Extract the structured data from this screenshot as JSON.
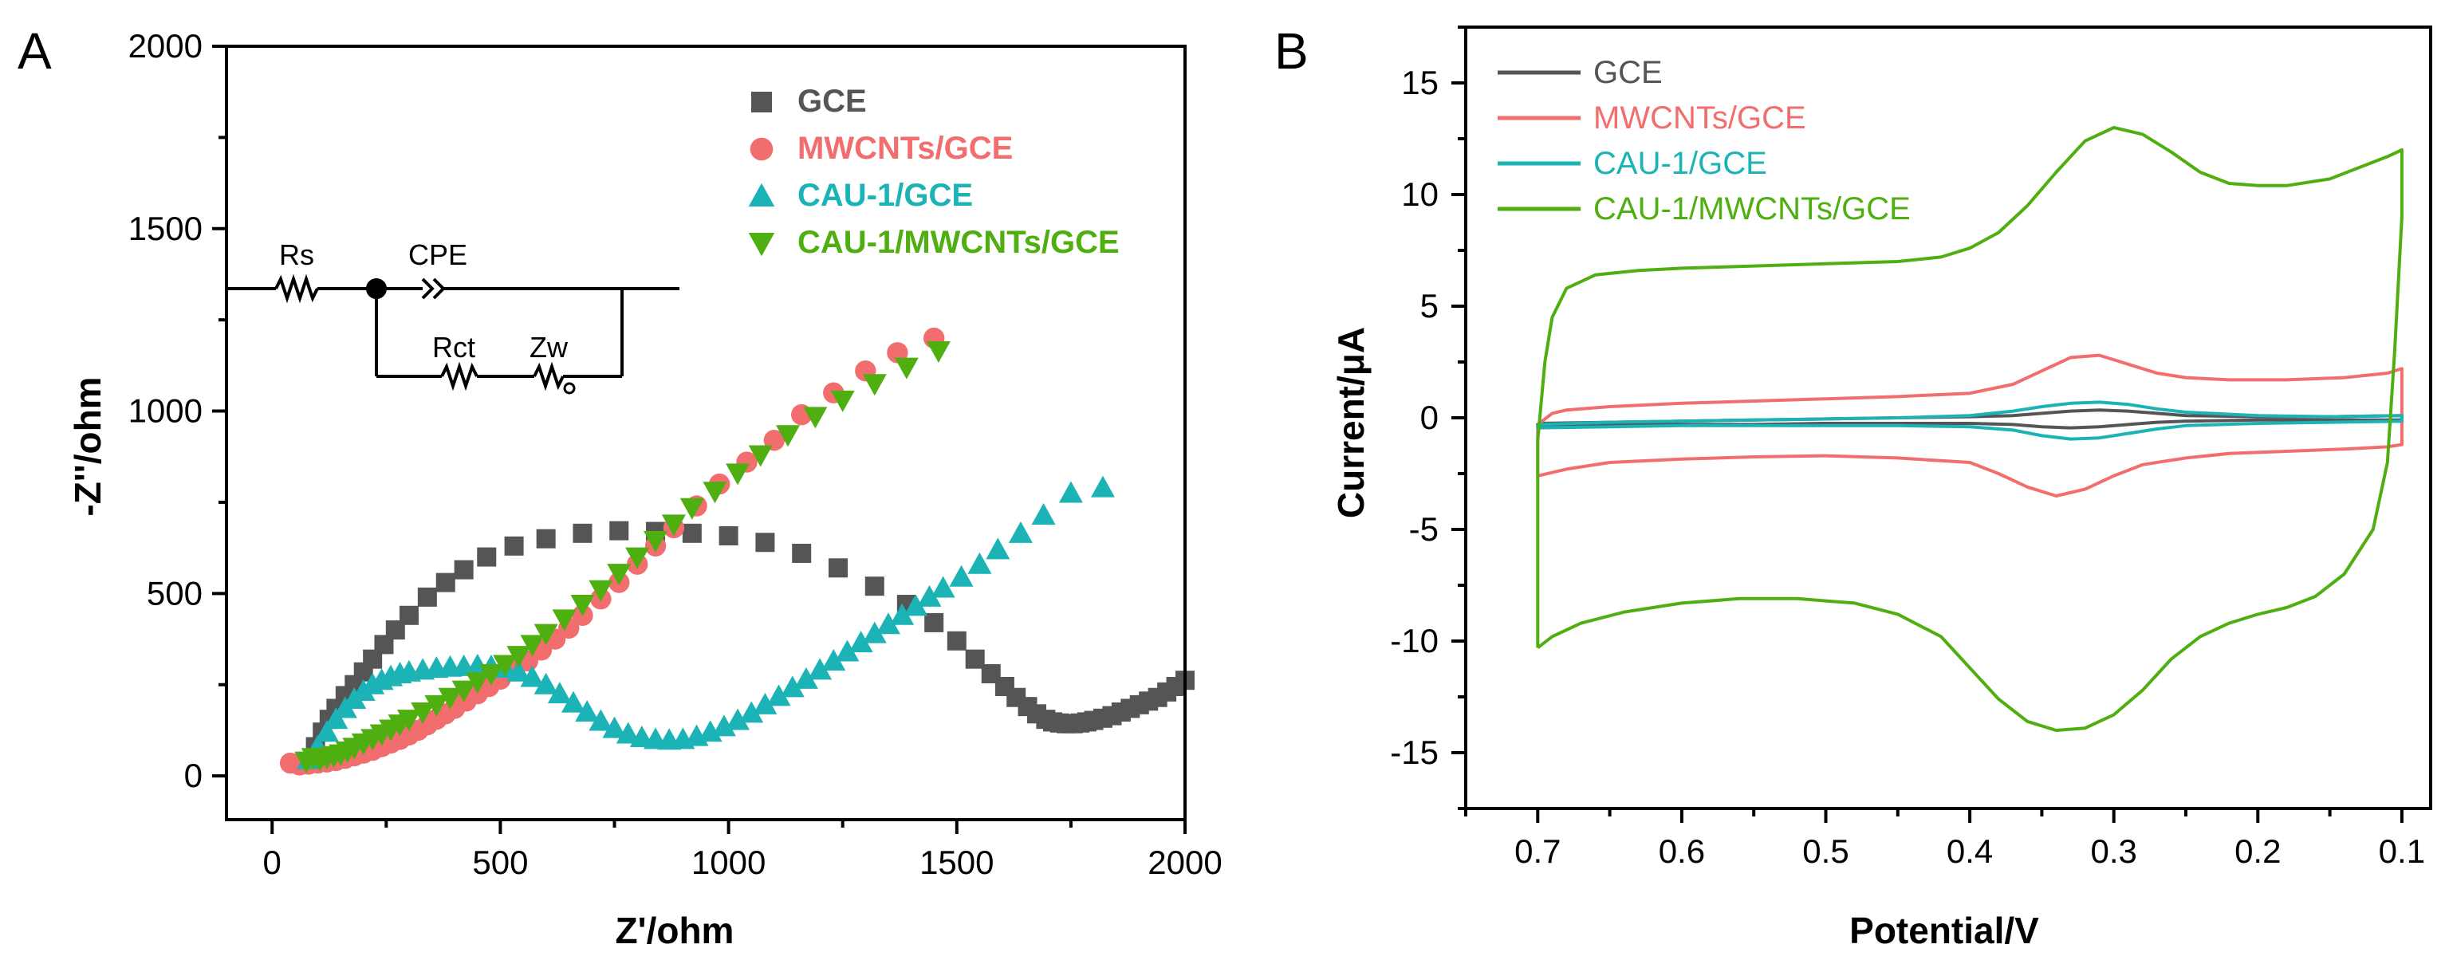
{
  "colors": {
    "gce": "#555555",
    "mwcnts": "#f26d6d",
    "cau1": "#1bb3b5",
    "cau1_mwcnts": "#4fae10"
  },
  "chart_data": [
    {
      "panel": "A",
      "type": "scatter",
      "xlabel": "Z'/ohm",
      "ylabel": "-Z''/ohm",
      "xlim": [
        -100,
        2000
      ],
      "ylim": [
        -120,
        2000
      ],
      "xticks": [
        "0",
        "500",
        "1000",
        "1500",
        "2000"
      ],
      "yticks": [
        "0",
        "500",
        "1000",
        "1500",
        "2000"
      ],
      "legend_position": "top-right",
      "inset": {
        "description_labels": [
          "Rs",
          "CPE",
          "Rct",
          "Zw"
        ]
      },
      "series": [
        {
          "name": "GCE",
          "marker": "square",
          "color_key": "gce",
          "x": [
            75,
            95,
            110,
            125,
            140,
            160,
            180,
            200,
            220,
            245,
            270,
            300,
            340,
            380,
            420,
            470,
            530,
            600,
            680,
            760,
            840,
            920,
            1000,
            1080,
            1160,
            1240,
            1320,
            1390,
            1450,
            1500,
            1540,
            1575,
            1605,
            1630,
            1655,
            1675,
            1695,
            1710,
            1725,
            1740,
            1755,
            1770,
            1785,
            1800,
            1820,
            1840,
            1860,
            1880,
            1900,
            1920,
            1940,
            1960,
            1980,
            2000
          ],
          "y": [
            40,
            80,
            120,
            155,
            185,
            220,
            250,
            285,
            320,
            360,
            400,
            440,
            490,
            530,
            565,
            600,
            630,
            650,
            665,
            672,
            670,
            665,
            658,
            640,
            610,
            570,
            520,
            470,
            420,
            370,
            320,
            280,
            245,
            215,
            190,
            170,
            155,
            148,
            145,
            143,
            143,
            145,
            148,
            152,
            158,
            165,
            175,
            185,
            195,
            205,
            215,
            230,
            245,
            262
          ]
        },
        {
          "name": "MWCNTs/GCE",
          "marker": "circle",
          "color_key": "mwcnts",
          "x": [
            40,
            60,
            80,
            100,
            120,
            140,
            160,
            180,
            200,
            220,
            240,
            260,
            280,
            300,
            320,
            340,
            360,
            380,
            400,
            425,
            450,
            475,
            500,
            530,
            560,
            590,
            620,
            650,
            680,
            720,
            760,
            800,
            840,
            880,
            930,
            980,
            1040,
            1100,
            1160,
            1230,
            1300,
            1370,
            1450
          ],
          "y": [
            35,
            30,
            32,
            35,
            38,
            42,
            48,
            55,
            62,
            70,
            80,
            90,
            100,
            112,
            125,
            140,
            155,
            170,
            185,
            205,
            225,
            245,
            265,
            290,
            315,
            345,
            375,
            405,
            440,
            485,
            530,
            580,
            630,
            680,
            740,
            800,
            860,
            920,
            990,
            1050,
            1110,
            1160,
            1200
          ]
        },
        {
          "name": "CAU-1/GCE",
          "marker": "triangle-up",
          "color_key": "cau1",
          "x": [
            80,
            100,
            120,
            140,
            160,
            180,
            200,
            220,
            240,
            260,
            280,
            300,
            330,
            360,
            390,
            420,
            450,
            480,
            510,
            540,
            570,
            600,
            630,
            660,
            690,
            720,
            750,
            780,
            810,
            840,
            870,
            900,
            930,
            960,
            990,
            1020,
            1050,
            1080,
            1110,
            1140,
            1170,
            1200,
            1230,
            1260,
            1290,
            1320,
            1350,
            1380,
            1410,
            1440,
            1470,
            1510,
            1550,
            1590,
            1640,
            1690,
            1750,
            1820
          ],
          "y": [
            45,
            80,
            120,
            155,
            185,
            210,
            232,
            250,
            262,
            272,
            280,
            285,
            290,
            295,
            298,
            300,
            302,
            300,
            295,
            285,
            270,
            250,
            225,
            200,
            175,
            150,
            130,
            115,
            105,
            100,
            98,
            100,
            108,
            120,
            135,
            152,
            172,
            195,
            218,
            242,
            265,
            290,
            315,
            340,
            365,
            390,
            415,
            440,
            465,
            490,
            515,
            545,
            580,
            620,
            665,
            715,
            775,
            790
          ]
        },
        {
          "name": "CAU-1/MWCNTs/GCE",
          "marker": "triangle-down",
          "color_key": "cau1_mwcnts",
          "x": [
            75,
            90,
            105,
            120,
            135,
            150,
            165,
            180,
            200,
            220,
            240,
            260,
            280,
            300,
            330,
            360,
            390,
            420,
            450,
            480,
            510,
            540,
            570,
            600,
            640,
            680,
            720,
            760,
            800,
            840,
            880,
            920,
            970,
            1020,
            1070,
            1130,
            1190,
            1250,
            1320,
            1390,
            1460
          ],
          "y": [
            40,
            50,
            45,
            50,
            55,
            60,
            68,
            78,
            90,
            102,
            115,
            128,
            142,
            155,
            175,
            195,
            215,
            235,
            258,
            280,
            305,
            330,
            360,
            390,
            430,
            470,
            510,
            555,
            600,
            645,
            690,
            735,
            780,
            830,
            880,
            935,
            985,
            1030,
            1075,
            1120,
            1165
          ]
        }
      ]
    },
    {
      "panel": "B",
      "type": "line",
      "xlabel": "Potential/V",
      "ylabel": "Current/μA",
      "xlim": [
        0.75,
        0.08
      ],
      "ylim": [
        -17.5,
        17.5
      ],
      "xticks": [
        "0.7",
        "0.6",
        "0.5",
        "0.4",
        "0.3",
        "0.2",
        "0.1"
      ],
      "yticks": [
        "15",
        "10",
        "5",
        "0",
        "-5",
        "-10",
        "-15"
      ],
      "legend_position": "top-left",
      "series": [
        {
          "name": "GCE",
          "color_key": "gce",
          "x": [
            0.7,
            0.65,
            0.6,
            0.55,
            0.5,
            0.45,
            0.4,
            0.37,
            0.35,
            0.33,
            0.31,
            0.29,
            0.27,
            0.25,
            0.2,
            0.15,
            0.1,
            0.1,
            0.15,
            0.2,
            0.25,
            0.27,
            0.29,
            0.31,
            0.33,
            0.35,
            0.37,
            0.4,
            0.45,
            0.5,
            0.55,
            0.6,
            0.65,
            0.7,
            0.7
          ],
          "y": [
            -0.25,
            -0.2,
            -0.15,
            -0.1,
            -0.05,
            0.0,
            0.05,
            0.1,
            0.2,
            0.3,
            0.35,
            0.3,
            0.2,
            0.1,
            0.05,
            0.05,
            0.1,
            -0.1,
            -0.1,
            -0.1,
            -0.15,
            -0.2,
            -0.3,
            -0.4,
            -0.45,
            -0.4,
            -0.3,
            -0.25,
            -0.25,
            -0.25,
            -0.3,
            -0.3,
            -0.3,
            -0.35,
            -0.25
          ]
        },
        {
          "name": "MWCNTs/GCE",
          "color_key": "mwcnts",
          "x": [
            0.7,
            0.69,
            0.68,
            0.65,
            0.6,
            0.55,
            0.5,
            0.45,
            0.4,
            0.37,
            0.35,
            0.33,
            0.31,
            0.29,
            0.27,
            0.25,
            0.22,
            0.18,
            0.14,
            0.11,
            0.1,
            0.1,
            0.11,
            0.14,
            0.18,
            0.22,
            0.25,
            0.28,
            0.3,
            0.32,
            0.34,
            0.36,
            0.38,
            0.4,
            0.45,
            0.5,
            0.55,
            0.6,
            0.65,
            0.68,
            0.7,
            0.7
          ],
          "y": [
            -0.3,
            0.2,
            0.35,
            0.5,
            0.65,
            0.75,
            0.85,
            0.95,
            1.1,
            1.5,
            2.1,
            2.7,
            2.8,
            2.4,
            2.0,
            1.8,
            1.7,
            1.7,
            1.8,
            2.0,
            2.2,
            -1.2,
            -1.3,
            -1.4,
            -1.5,
            -1.6,
            -1.8,
            -2.1,
            -2.6,
            -3.2,
            -3.5,
            -3.1,
            -2.5,
            -2.0,
            -1.8,
            -1.7,
            -1.75,
            -1.85,
            -2.0,
            -2.3,
            -2.6,
            -0.3
          ]
        },
        {
          "name": "CAU-1/GCE",
          "color_key": "cau1",
          "x": [
            0.7,
            0.65,
            0.6,
            0.55,
            0.5,
            0.45,
            0.4,
            0.37,
            0.35,
            0.33,
            0.31,
            0.29,
            0.27,
            0.25,
            0.2,
            0.15,
            0.1,
            0.1,
            0.15,
            0.2,
            0.25,
            0.27,
            0.29,
            0.31,
            0.33,
            0.35,
            0.37,
            0.4,
            0.45,
            0.5,
            0.55,
            0.6,
            0.65,
            0.7,
            0.7
          ],
          "y": [
            -0.3,
            -0.2,
            -0.15,
            -0.1,
            -0.05,
            0.0,
            0.1,
            0.3,
            0.5,
            0.65,
            0.7,
            0.6,
            0.4,
            0.25,
            0.1,
            0.05,
            0.1,
            -0.15,
            -0.2,
            -0.25,
            -0.35,
            -0.5,
            -0.7,
            -0.9,
            -0.95,
            -0.8,
            -0.55,
            -0.4,
            -0.35,
            -0.35,
            -0.35,
            -0.35,
            -0.4,
            -0.45,
            -0.3
          ]
        },
        {
          "name": "CAU-1/MWCNTs/GCE",
          "color_key": "cau1_mwcnts",
          "x": [
            0.7,
            0.7,
            0.695,
            0.69,
            0.68,
            0.66,
            0.63,
            0.6,
            0.55,
            0.5,
            0.45,
            0.42,
            0.4,
            0.38,
            0.36,
            0.34,
            0.32,
            0.3,
            0.28,
            0.26,
            0.24,
            0.22,
            0.2,
            0.18,
            0.15,
            0.13,
            0.11,
            0.1,
            0.1,
            0.105,
            0.11,
            0.12,
            0.14,
            0.16,
            0.18,
            0.2,
            0.22,
            0.24,
            0.26,
            0.28,
            0.3,
            0.32,
            0.34,
            0.36,
            0.38,
            0.4,
            0.42,
            0.45,
            0.48,
            0.52,
            0.56,
            0.6,
            0.64,
            0.67,
            0.69,
            0.7
          ],
          "y": [
            -10.3,
            -1.0,
            2.5,
            4.5,
            5.8,
            6.4,
            6.6,
            6.7,
            6.8,
            6.9,
            7.0,
            7.2,
            7.6,
            8.3,
            9.5,
            11.0,
            12.4,
            13.0,
            12.7,
            11.9,
            11.0,
            10.5,
            10.4,
            10.4,
            10.7,
            11.2,
            11.7,
            12.0,
            9.0,
            3.0,
            -2.0,
            -5.0,
            -7.0,
            -8.0,
            -8.5,
            -8.8,
            -9.2,
            -9.8,
            -10.8,
            -12.2,
            -13.3,
            -13.9,
            -14.0,
            -13.6,
            -12.6,
            -11.2,
            -9.8,
            -8.8,
            -8.3,
            -8.1,
            -8.1,
            -8.3,
            -8.7,
            -9.2,
            -9.8,
            -10.3
          ]
        }
      ]
    }
  ]
}
